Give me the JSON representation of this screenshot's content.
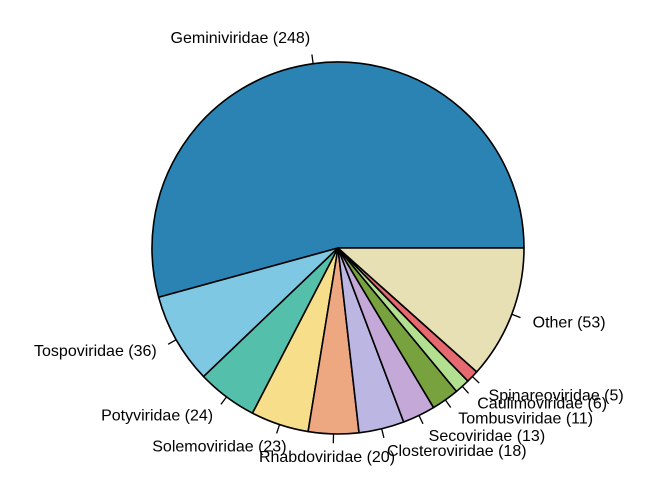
{
  "chart_data": {
    "type": "pie",
    "title": "",
    "start_angle_deg": 0,
    "direction": "counterclockwise",
    "slices": [
      {
        "label": "Geminiviridae (248)",
        "value": 248,
        "color": "#2a83b3"
      },
      {
        "label": "Tospoviridae (36)",
        "value": 36,
        "color": "#7ec8e3"
      },
      {
        "label": "Potyviridae (24)",
        "value": 24,
        "color": "#54bfaa"
      },
      {
        "label": "Solemoviridae (23)",
        "value": 23,
        "color": "#f6de8a"
      },
      {
        "label": "Rhabdoviridae (20)",
        "value": 20,
        "color": "#eda882"
      },
      {
        "label": "Closteroviridae (18)",
        "value": 18,
        "color": "#bcb6e2"
      },
      {
        "label": "Secoviridae (13)",
        "value": 13,
        "color": "#c4a8d8"
      },
      {
        "label": "Tombusviridae (11)",
        "value": 11,
        "color": "#77a23e"
      },
      {
        "label": "Caulimoviridae (6)",
        "value": 6,
        "color": "#b2e090"
      },
      {
        "label": "Spinareoviridae (5)",
        "value": 5,
        "color": "#e5696e"
      },
      {
        "label": "Other (53)",
        "value": 53,
        "color": "#e6e0b4"
      }
    ]
  }
}
